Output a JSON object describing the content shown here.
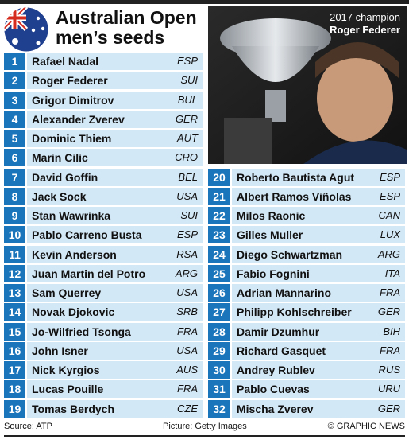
{
  "header": {
    "title_line1": "Australian Open",
    "title_line2": "men’s seeds"
  },
  "photo": {
    "caption_1": "2017 champion",
    "caption_2": "Roger Federer"
  },
  "table": {
    "rows": [
      [
        1,
        "Rafael Nadal",
        "ESP"
      ],
      [
        2,
        "Roger Federer",
        "SUI"
      ],
      [
        3,
        "Grigor Dimitrov",
        "BUL"
      ],
      [
        4,
        "Alexander Zverev",
        "GER"
      ],
      [
        5,
        "Dominic Thiem",
        "AUT"
      ],
      [
        6,
        "Marin Cilic",
        "CRO"
      ],
      [
        7,
        "David Goffin",
        "BEL"
      ],
      [
        8,
        "Jack Sock",
        "USA"
      ],
      [
        9,
        "Stan Wawrinka",
        "SUI"
      ],
      [
        10,
        "Pablo Carreno Busta",
        "ESP"
      ],
      [
        11,
        "Kevin Anderson",
        "RSA"
      ],
      [
        12,
        "Juan Martin del Potro",
        "ARG"
      ],
      [
        13,
        "Sam Querrey",
        "USA"
      ],
      [
        14,
        "Novak Djokovic",
        "SRB"
      ],
      [
        15,
        "Jo-Wilfried Tsonga",
        "FRA"
      ],
      [
        16,
        "John Isner",
        "USA"
      ],
      [
        17,
        "Nick Kyrgios",
        "AUS"
      ],
      [
        18,
        "Lucas Pouille",
        "FRA"
      ],
      [
        19,
        "Tomas Berdych",
        "CZE"
      ],
      [
        20,
        "Roberto Bautista Agut",
        "ESP"
      ],
      [
        21,
        "Albert Ramos Viñolas",
        "ESP"
      ],
      [
        22,
        "Milos Raonic",
        "CAN"
      ],
      [
        23,
        "Gilles Muller",
        "LUX"
      ],
      [
        24,
        "Diego Schwartzman",
        "ARG"
      ],
      [
        25,
        "Fabio Fognini",
        "ITA"
      ],
      [
        26,
        "Adrian Mannarino",
        "FRA"
      ],
      [
        27,
        "Philipp Kohlschreiber",
        "GER"
      ],
      [
        28,
        "Damir Dzumhur",
        "BIH"
      ],
      [
        29,
        "Richard Gasquet",
        "FRA"
      ],
      [
        30,
        "Andrey Rublev",
        "RUS"
      ],
      [
        31,
        "Pablo Cuevas",
        "URU"
      ],
      [
        32,
        "Mischa Zverev",
        "GER"
      ]
    ]
  },
  "footer": {
    "source": "Source: ATP",
    "picture": "Picture: Getty Images",
    "credit": "© GRAPHIC NEWS"
  }
}
